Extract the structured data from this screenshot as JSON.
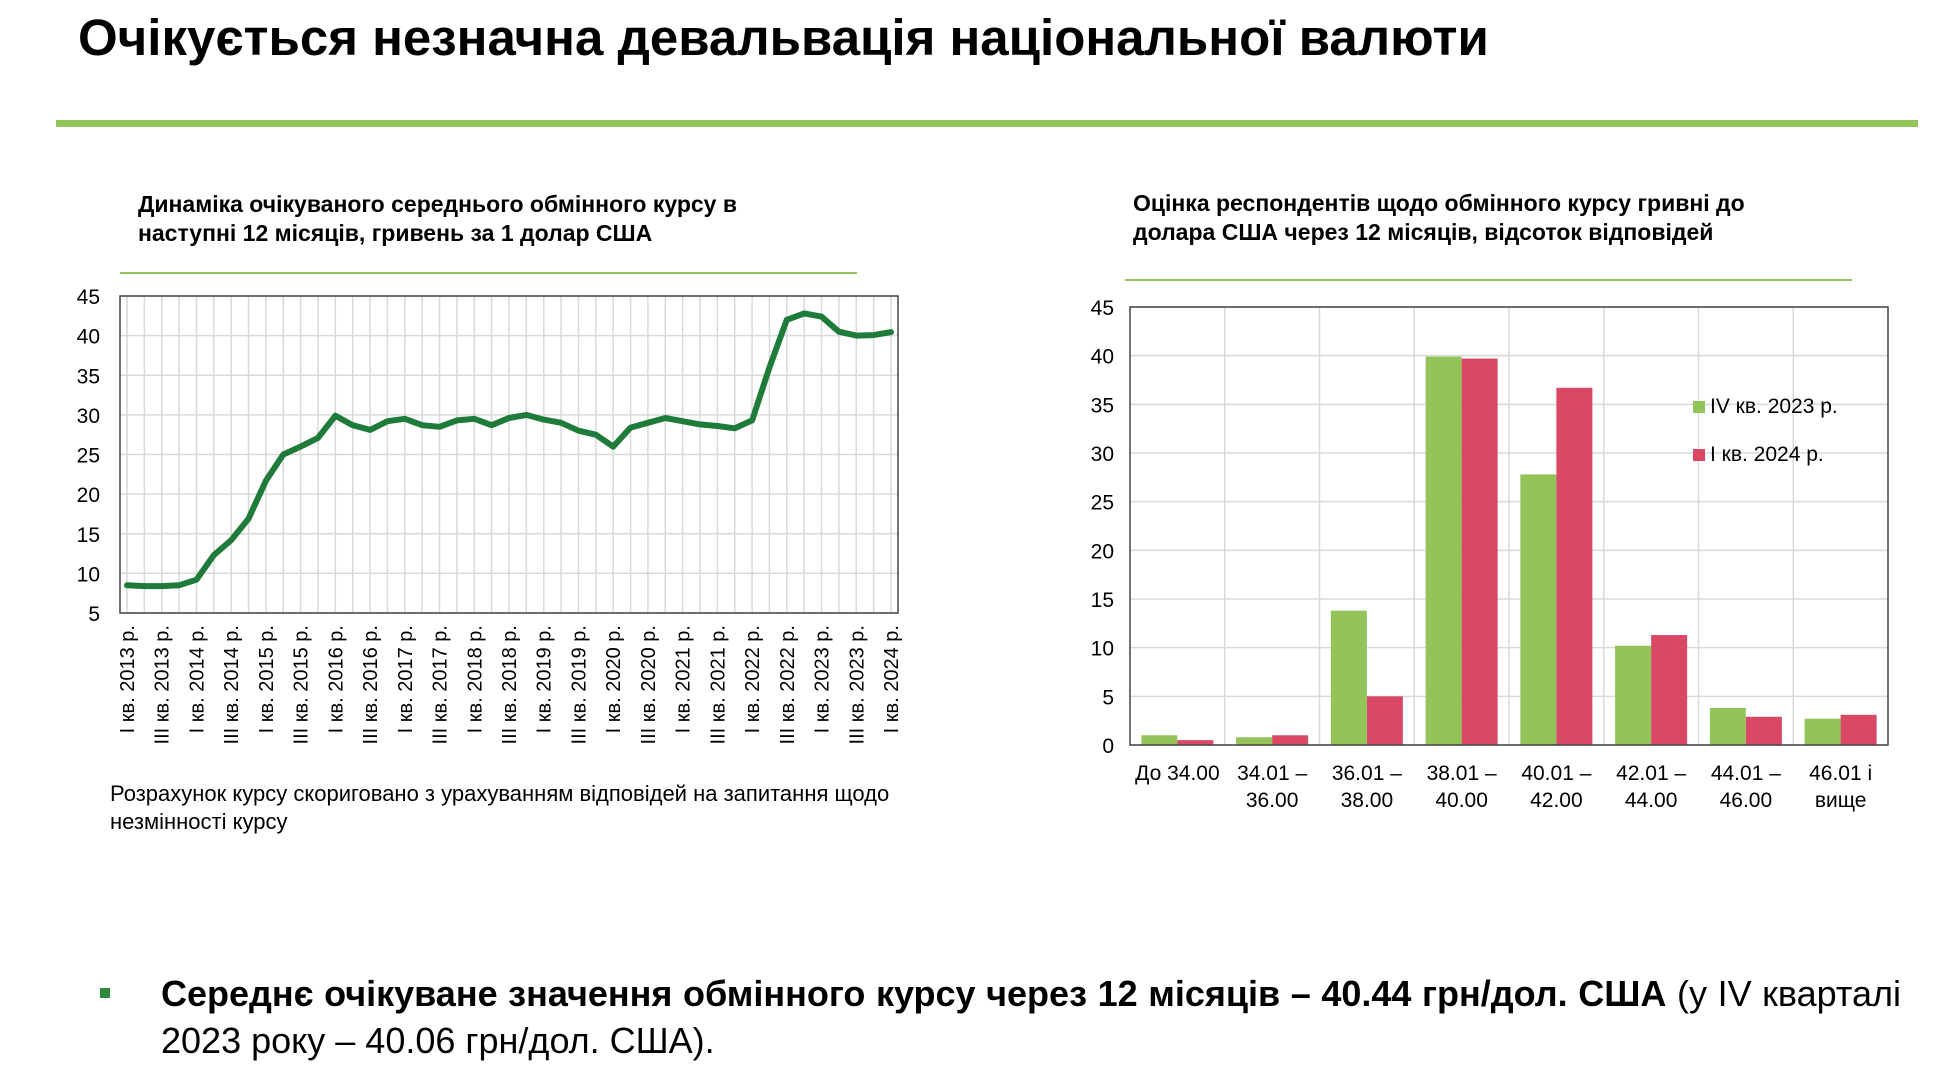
{
  "page": {
    "title": "Очікується незначна девальвація національної валюти",
    "accent_color": "#92c45a",
    "bullet": {
      "bold": "Середнє очікуване значення обмінного курсу через 12 місяців – 40.44 грн/дол. США",
      "normal": " (у IV кварталі 2023 року – 40.06 грн/дол. США)."
    }
  },
  "left_chart": {
    "title": "Динаміка очікуваного середнього обмінного курсу в наступні 12 місяців, гривень за 1 долар США",
    "note": "Розрахунок курсу скориговано з урахуванням відповідей на запитання щодо незмінності курсу"
  },
  "right_chart": {
    "title": "Оцінка респондентів щодо обмінного курсу гривні до долара США через 12 місяців, відсоток відповідей"
  },
  "chart_data": [
    {
      "type": "line",
      "title": "Динаміка очікуваного середнього обмінного курсу в наступні 12 місяців, гривень за 1 долар США",
      "ylim": [
        5,
        45
      ],
      "yticks": [
        5,
        10,
        15,
        20,
        25,
        30,
        35,
        40,
        45
      ],
      "grid": true,
      "line_color": "#1e7b3a",
      "tick_labels": [
        "I кв. 2013 р.",
        "III кв. 2013 р.",
        "I кв. 2014 р.",
        "III кв. 2014 р.",
        "I кв. 2015 р.",
        "III кв. 2015 р.",
        "I кв. 2016 р.",
        "III кв. 2016 р.",
        "I кв. 2017 р.",
        "III кв. 2017 р.",
        "I кв. 2018 р.",
        "III кв. 2018 р.",
        "I кв. 2019 р.",
        "III кв. 2019 р.",
        "I кв. 2020 р.",
        "III кв. 2020 р.",
        "I кв. 2021 р.",
        "III кв. 2021 р.",
        "I кв. 2022 р.",
        "III кв. 2022 р.",
        "I кв. 2023 р.",
        "III кв. 2023 р.",
        "I кв. 2024 р."
      ],
      "values": [
        8.5,
        8.4,
        8.4,
        8.5,
        9.2,
        12.3,
        14.2,
        16.9,
        21.7,
        25.0,
        26.0,
        27.1,
        29.9,
        28.7,
        28.1,
        29.2,
        29.5,
        28.7,
        28.5,
        29.3,
        29.5,
        28.7,
        29.6,
        30.0,
        29.4,
        29.0,
        28.0,
        27.5,
        26.0,
        28.4,
        29.0,
        29.6,
        29.2,
        28.8,
        28.6,
        28.3,
        29.3,
        36.0,
        42.0,
        42.8,
        42.4,
        40.5,
        40.0,
        40.06,
        40.44
      ]
    },
    {
      "type": "bar",
      "title": "Оцінка респондентів щодо обмінного курсу гривні до долара США через 12 місяців, відсоток відповідей",
      "ylim": [
        0,
        45
      ],
      "yticks": [
        0,
        5,
        10,
        15,
        20,
        25,
        30,
        35,
        40,
        45
      ],
      "grid": true,
      "legend_position": "right",
      "categories": [
        [
          "До 34.00",
          ""
        ],
        [
          "34.01 –",
          "36.00"
        ],
        [
          "36.01 –",
          "38.00"
        ],
        [
          "38.01 –",
          "40.00"
        ],
        [
          "40.01 –",
          "42.00"
        ],
        [
          "42.01 –",
          "44.00"
        ],
        [
          "44.01 –",
          "46.00"
        ],
        [
          "46.01 і",
          "вище"
        ]
      ],
      "series": [
        {
          "name": "IV кв. 2023 р.",
          "color": "#92c45a",
          "values": [
            1.0,
            0.8,
            13.8,
            39.9,
            27.8,
            10.2,
            3.8,
            2.7
          ]
        },
        {
          "name": "I кв. 2024 р.",
          "color": "#d94966",
          "values": [
            0.5,
            1.0,
            5.0,
            39.7,
            36.7,
            11.3,
            2.9,
            3.1
          ]
        }
      ]
    }
  ]
}
